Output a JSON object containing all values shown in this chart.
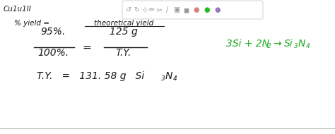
{
  "main_bg": "#ffffff",
  "text_color": "#1a1a1a",
  "reaction_color": "#22aa22",
  "toolbar_bg": "white",
  "toolbar_border": "#cccccc",
  "bottom_line_color": "#bbbbbb",
  "icon_gray": "#999999",
  "icon_pink": "#d88080",
  "icon_green": "#22bb22",
  "icon_purple": "#9977bb",
  "top_partial_text": "Cu1u1II",
  "percent_yield_text": "% yield =",
  "theoretical_yield": "theoretical yield",
  "frac_num_left": "95%.",
  "frac_den_left": "100%.",
  "frac_num_right": "125 g",
  "frac_den_right": "T.Y.",
  "result_prefix": "T.Y.   =   131. 58 g  Si",
  "subscript_3": "3",
  "N_text": "N",
  "subscript_4": "4",
  "react_prefix": "3Si + 2N",
  "react_sub2": "2",
  "react_arrow": "→",
  "react_Si": "Si",
  "react_sub3": "3",
  "react_N": "N",
  "react_sub4": "4"
}
